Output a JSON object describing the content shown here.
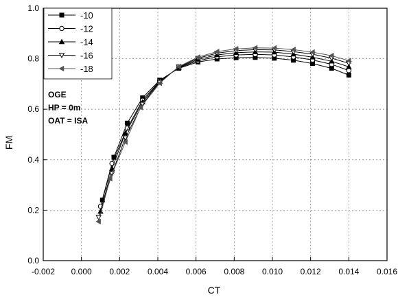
{
  "chart_data": {
    "type": "line",
    "xlabel": "CT",
    "ylabel": "FM",
    "xlim": [
      -0.002,
      0.016
    ],
    "ylim": [
      0.0,
      1.0
    ],
    "xticks": [
      "-0.002",
      "0.000",
      "0.002",
      "0.004",
      "0.006",
      "0.008",
      "0.010",
      "0.012",
      "0.014",
      "0.016"
    ],
    "yticks": [
      "0.0",
      "0.2",
      "0.4",
      "0.6",
      "0.8",
      "1.0"
    ],
    "grid": true,
    "legend_position": "top-left",
    "annotations": [
      "OGE",
      "HP = 0m",
      "OAT = ISA"
    ],
    "series": [
      {
        "name": "-10",
        "marker": "square",
        "filled": true,
        "color": "#000000",
        "points": [
          [
            0.0011,
            0.24
          ],
          [
            0.0017,
            0.41
          ],
          [
            0.0024,
            0.545
          ],
          [
            0.0032,
            0.645
          ],
          [
            0.0041,
            0.715
          ],
          [
            0.0051,
            0.762
          ],
          [
            0.0061,
            0.787
          ],
          [
            0.0071,
            0.799
          ],
          [
            0.0081,
            0.804
          ],
          [
            0.0091,
            0.805
          ],
          [
            0.0101,
            0.802
          ],
          [
            0.0111,
            0.794
          ],
          [
            0.0121,
            0.781
          ],
          [
            0.0131,
            0.762
          ],
          [
            0.014,
            0.735
          ]
        ]
      },
      {
        "name": "-12",
        "marker": "circle",
        "filled": false,
        "color": "#000000",
        "points": [
          [
            0.001,
            0.215
          ],
          [
            0.0016,
            0.385
          ],
          [
            0.0024,
            0.525
          ],
          [
            0.0032,
            0.635
          ],
          [
            0.0041,
            0.712
          ],
          [
            0.0051,
            0.764
          ],
          [
            0.0061,
            0.792
          ],
          [
            0.0071,
            0.808
          ],
          [
            0.0081,
            0.815
          ],
          [
            0.0091,
            0.817
          ],
          [
            0.0101,
            0.815
          ],
          [
            0.0111,
            0.807
          ],
          [
            0.0121,
            0.795
          ],
          [
            0.0131,
            0.778
          ],
          [
            0.014,
            0.753
          ]
        ]
      },
      {
        "name": "-14",
        "marker": "triangle-up",
        "filled": true,
        "color": "#000000",
        "points": [
          [
            0.001,
            0.195
          ],
          [
            0.0016,
            0.365
          ],
          [
            0.0023,
            0.505
          ],
          [
            0.0032,
            0.628
          ],
          [
            0.0041,
            0.71
          ],
          [
            0.0051,
            0.766
          ],
          [
            0.0061,
            0.797
          ],
          [
            0.0071,
            0.815
          ],
          [
            0.0081,
            0.824
          ],
          [
            0.0091,
            0.827
          ],
          [
            0.0101,
            0.826
          ],
          [
            0.0111,
            0.818
          ],
          [
            0.0121,
            0.806
          ],
          [
            0.0131,
            0.79
          ],
          [
            0.014,
            0.768
          ]
        ]
      },
      {
        "name": "-16",
        "marker": "triangle-down",
        "filled": false,
        "color": "#000000",
        "points": [
          [
            0.0009,
            0.172
          ],
          [
            0.0016,
            0.345
          ],
          [
            0.0023,
            0.487
          ],
          [
            0.0032,
            0.62
          ],
          [
            0.0041,
            0.707
          ],
          [
            0.0051,
            0.768
          ],
          [
            0.0061,
            0.802
          ],
          [
            0.0071,
            0.822
          ],
          [
            0.0081,
            0.832
          ],
          [
            0.0091,
            0.836
          ],
          [
            0.0101,
            0.835
          ],
          [
            0.0111,
            0.828
          ],
          [
            0.0121,
            0.818
          ],
          [
            0.0131,
            0.802
          ],
          [
            0.014,
            0.782
          ]
        ]
      },
      {
        "name": "-18",
        "marker": "triangle-left",
        "filled": true,
        "color": "#555555",
        "points": [
          [
            0.0009,
            0.155
          ],
          [
            0.0015,
            0.325
          ],
          [
            0.0023,
            0.47
          ],
          [
            0.0031,
            0.607
          ],
          [
            0.0041,
            0.703
          ],
          [
            0.0051,
            0.769
          ],
          [
            0.0061,
            0.806
          ],
          [
            0.0071,
            0.828
          ],
          [
            0.0081,
            0.839
          ],
          [
            0.0091,
            0.843
          ],
          [
            0.0101,
            0.842
          ],
          [
            0.0111,
            0.836
          ],
          [
            0.0121,
            0.826
          ],
          [
            0.0131,
            0.812
          ],
          [
            0.014,
            0.792
          ]
        ]
      }
    ]
  }
}
